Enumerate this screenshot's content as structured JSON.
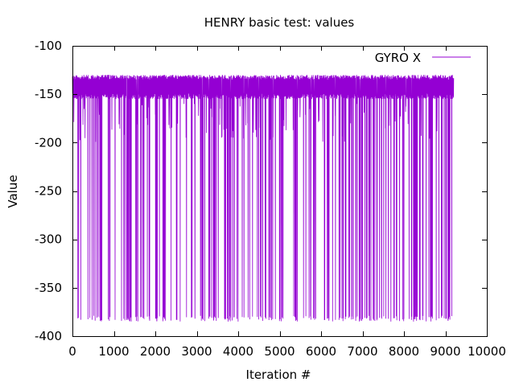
{
  "chart_data": {
    "type": "line",
    "title": "HENRY basic test: values",
    "xlabel": "Iteration #",
    "ylabel": "Value",
    "xlim": [
      0,
      10000
    ],
    "ylim": [
      -400,
      -100
    ],
    "x_ticks": [
      0,
      1000,
      2000,
      3000,
      4000,
      5000,
      6000,
      7000,
      8000,
      9000,
      10000
    ],
    "y_ticks": [
      -100,
      -150,
      -200,
      -250,
      -300,
      -350,
      -400
    ],
    "grid": false,
    "legend": {
      "position": "top-right"
    },
    "series": [
      {
        "name": "GYRO X",
        "color": "#9400d3",
        "x_range": [
          0,
          9200
        ],
        "band_values": [
          -130,
          -155
        ],
        "spike_min": -385,
        "notes": ""
      }
    ]
  }
}
